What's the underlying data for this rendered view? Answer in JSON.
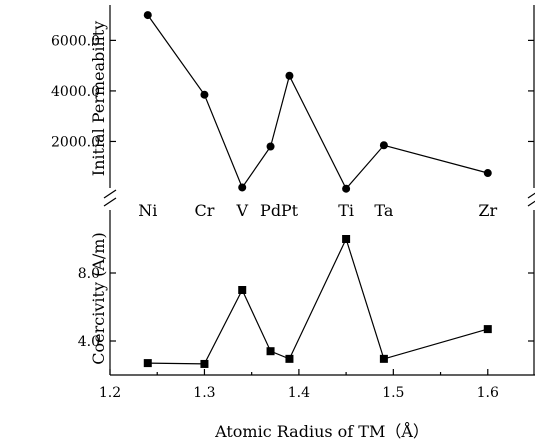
{
  "chart_data": {
    "type": "line",
    "x_axis": {
      "label": "Atomic Radius of TM（Å）",
      "range": [
        1.2,
        1.65
      ],
      "ticks": [
        1.2,
        1.3,
        1.4,
        1.5,
        1.6
      ],
      "tick_labels": [
        "1.2",
        "1.3",
        "1.4",
        "1.5",
        "1.6"
      ]
    },
    "panels": [
      {
        "name": "top",
        "ylabel": "Initial Permeability",
        "ylim": [
          0,
          7400
        ],
        "yticks": [
          2000,
          4000,
          6000
        ],
        "ytick_labels": [
          "2000.0",
          "4000.0",
          "6000.0"
        ],
        "marker": "circle",
        "series": [
          {
            "x": [
              1.24,
              1.3,
              1.34,
              1.37,
              1.39,
              1.45,
              1.49,
              1.6
            ],
            "y": [
              7000,
              3850,
              180,
              1800,
              4600,
              130,
              1850,
              750
            ]
          }
        ]
      },
      {
        "name": "bottom",
        "ylabel": "Coercivity (A/m)",
        "ylim": [
          2.0,
          11.0
        ],
        "yticks": [
          4.0,
          8.0
        ],
        "ytick_labels": [
          "4.0",
          "8.0"
        ],
        "marker": "square",
        "series": [
          {
            "x": [
              1.24,
              1.3,
              1.34,
              1.37,
              1.39,
              1.45,
              1.49,
              1.6
            ],
            "y": [
              2.7,
              2.65,
              7.0,
              3.4,
              2.95,
              10.0,
              2.95,
              4.7
            ]
          }
        ]
      }
    ],
    "element_labels": [
      {
        "text": "Ni",
        "x": 1.24
      },
      {
        "text": "Cr",
        "x": 1.3
      },
      {
        "text": "V",
        "x": 1.34
      },
      {
        "text": "Pd",
        "x": 1.37
      },
      {
        "text": "Pt",
        "x": 1.39
      },
      {
        "text": "Ti",
        "x": 1.45
      },
      {
        "text": "Ta",
        "x": 1.49
      },
      {
        "text": "Zr",
        "x": 1.6
      }
    ],
    "grid": false,
    "axis_break": true
  }
}
